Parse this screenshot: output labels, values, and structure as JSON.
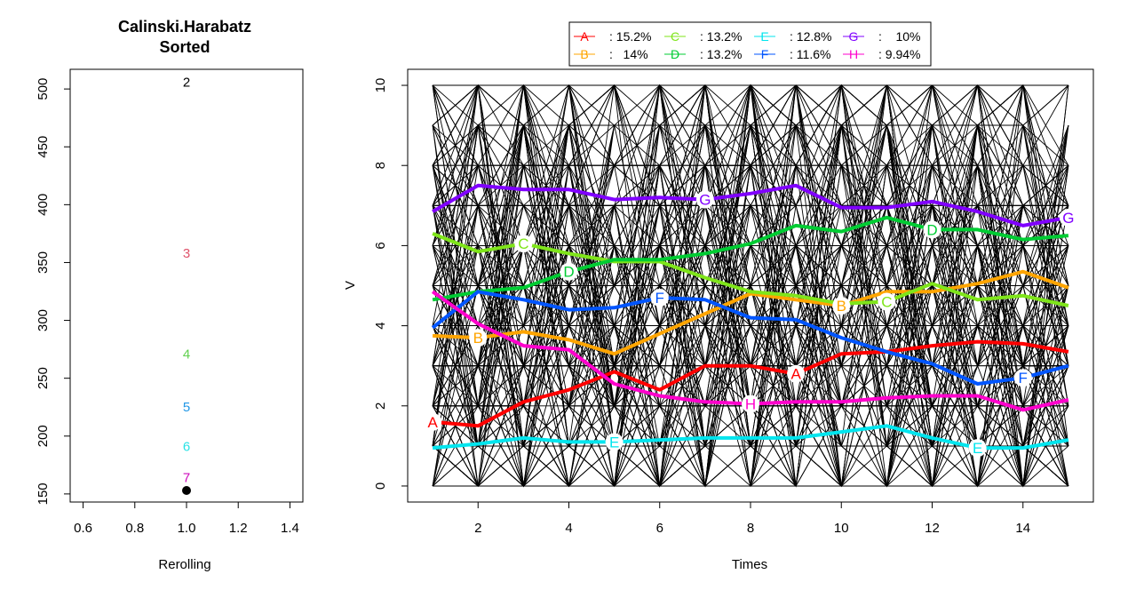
{
  "chart_data": [
    {
      "type": "scatter",
      "title": "Calinski.Harabatz",
      "subtitle": "Sorted",
      "xlabel": "Rerolling",
      "ylabel": "",
      "xlim": [
        0.55,
        1.45
      ],
      "ylim": [
        143,
        517
      ],
      "x_ticks": [
        0.6,
        0.8,
        1.0,
        1.2,
        1.4
      ],
      "y_ticks": [
        150,
        200,
        250,
        300,
        350,
        400,
        450,
        500
      ],
      "grid": false,
      "text_points": [
        {
          "x": 1.0,
          "y": 506,
          "label": "2",
          "color": "#000000"
        },
        {
          "x": 1.0,
          "y": 358,
          "label": "3",
          "color": "#DF536B"
        },
        {
          "x": 1.0,
          "y": 271,
          "label": "4",
          "color": "#61D04F"
        },
        {
          "x": 1.0,
          "y": 225,
          "label": "5",
          "color": "#2297E6"
        },
        {
          "x": 1.0,
          "y": 191,
          "label": "6",
          "color": "#28E2E5"
        },
        {
          "x": 1.0,
          "y": 164,
          "label": "7",
          "color": "#CD0BBC"
        }
      ],
      "points": [
        {
          "x": 1.0,
          "y": 153,
          "color": "#000000"
        }
      ]
    },
    {
      "type": "line",
      "title": "",
      "xlabel": "Times",
      "ylabel": "V",
      "xlim": [
        0.45,
        15.55
      ],
      "ylim": [
        -0.4,
        10.4
      ],
      "x_ticks": [
        2,
        4,
        6,
        8,
        10,
        12,
        14
      ],
      "y_ticks": [
        0,
        2,
        4,
        6,
        8,
        10
      ],
      "grid": false,
      "legend_position": "top",
      "x": [
        1,
        2,
        3,
        4,
        5,
        6,
        7,
        8,
        9,
        10,
        11,
        12,
        13,
        14,
        15
      ],
      "background_trajectories": "dense black individual trajectories between integer values 0–10 at each time",
      "series": [
        {
          "name": "A",
          "legend_value": ": 15.2%",
          "color": "#FF0000",
          "label_at": [
            1,
            9
          ],
          "values": [
            1.6,
            1.5,
            2.1,
            2.4,
            2.85,
            2.4,
            3.0,
            3.0,
            2.8,
            3.3,
            3.35,
            3.5,
            3.6,
            3.55,
            3.35
          ]
        },
        {
          "name": "B",
          "legend_value": ":   14%",
          "color": "#FFA500",
          "label_at": [
            2,
            10
          ],
          "values": [
            3.75,
            3.7,
            3.85,
            3.65,
            3.3,
            3.8,
            4.3,
            4.8,
            4.65,
            4.5,
            4.85,
            4.85,
            5.05,
            5.35,
            4.95
          ]
        },
        {
          "name": "C",
          "legend_value": ": 13.2%",
          "color": "#7FE51A",
          "label_at": [
            3,
            11
          ],
          "values": [
            6.3,
            5.85,
            6.05,
            5.8,
            5.6,
            5.6,
            5.2,
            4.85,
            4.75,
            4.55,
            4.6,
            5.05,
            4.65,
            4.75,
            4.5
          ]
        },
        {
          "name": "D",
          "legend_value": ": 13.2%",
          "color": "#00CC33",
          "label_at": [
            4,
            12
          ],
          "values": [
            4.65,
            4.85,
            4.95,
            5.35,
            5.65,
            5.65,
            5.8,
            6.05,
            6.5,
            6.35,
            6.7,
            6.4,
            6.4,
            6.15,
            6.25
          ]
        },
        {
          "name": "E",
          "legend_value": ": 12.8%",
          "color": "#00E5EE",
          "label_at": [
            5,
            13
          ],
          "values": [
            0.95,
            1.05,
            1.2,
            1.1,
            1.1,
            1.15,
            1.2,
            1.2,
            1.2,
            1.35,
            1.5,
            1.2,
            0.95,
            0.95,
            1.15
          ]
        },
        {
          "name": "F",
          "legend_value": ": 11.6%",
          "color": "#0055FF",
          "label_at": [
            6,
            14
          ],
          "values": [
            3.95,
            4.85,
            4.65,
            4.4,
            4.45,
            4.7,
            4.65,
            4.2,
            4.15,
            3.7,
            3.35,
            3.05,
            2.55,
            2.7,
            3.0
          ]
        },
        {
          "name": "G",
          "legend_value": ":    10%",
          "color": "#8000FF",
          "label_at": [
            7,
            15
          ],
          "values": [
            6.85,
            7.5,
            7.4,
            7.4,
            7.15,
            7.2,
            7.15,
            7.3,
            7.5,
            6.95,
            6.95,
            7.1,
            6.85,
            6.5,
            6.7
          ]
        },
        {
          "name": "H",
          "legend_value": ": 9.94%",
          "color": "#FF00CC",
          "label_at": [
            8
          ],
          "values": [
            4.85,
            4.05,
            3.5,
            3.4,
            2.55,
            2.25,
            2.1,
            2.05,
            2.1,
            2.1,
            2.2,
            2.25,
            2.25,
            1.9,
            2.15
          ]
        }
      ]
    }
  ]
}
